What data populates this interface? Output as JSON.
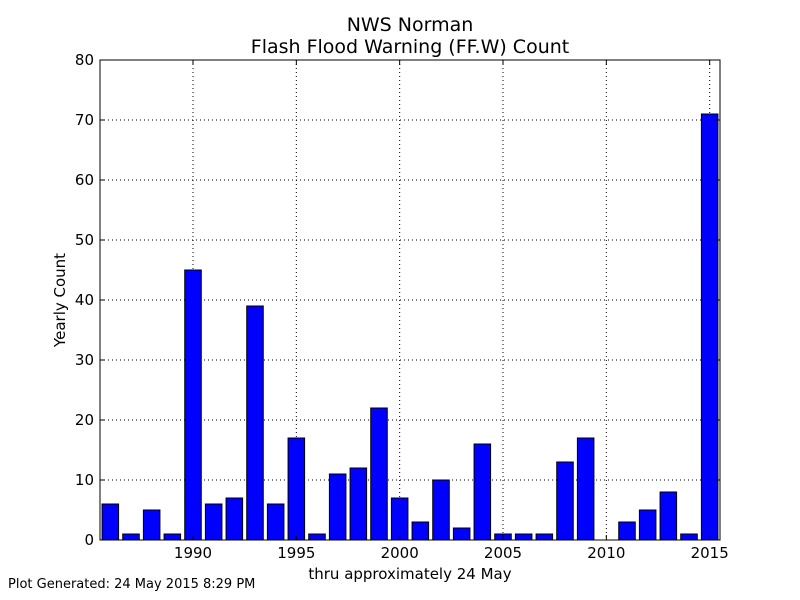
{
  "chart_data": {
    "type": "bar",
    "title": "NWS Norman",
    "subtitle": "Flash Flood Warning (FF.W) Count",
    "xlabel": "thru approximately 24 May",
    "ylabel": "Yearly Count",
    "x": [
      1986,
      1987,
      1988,
      1989,
      1990,
      1991,
      1992,
      1993,
      1994,
      1995,
      1996,
      1997,
      1998,
      1999,
      2000,
      2001,
      2002,
      2003,
      2004,
      2005,
      2006,
      2007,
      2008,
      2009,
      2010,
      2011,
      2012,
      2013,
      2014,
      2015
    ],
    "values": [
      6,
      1,
      5,
      1,
      45,
      6,
      7,
      39,
      6,
      17,
      1,
      11,
      12,
      22,
      7,
      3,
      10,
      2,
      16,
      1,
      1,
      1,
      13,
      17,
      0,
      3,
      5,
      8,
      1,
      71
    ],
    "xlim": [
      1985.5,
      2015.5
    ],
    "ylim": [
      0,
      80
    ],
    "xticks": [
      1990,
      1995,
      2000,
      2005,
      2010,
      2015
    ],
    "yticks": [
      0,
      10,
      20,
      30,
      40,
      50,
      60,
      70,
      80
    ],
    "grid": true,
    "bar_color": "#0000ff",
    "bar_edge_color": "#000000"
  },
  "footer": {
    "generated": "Plot Generated: 24 May 2015 8:29 PM"
  }
}
